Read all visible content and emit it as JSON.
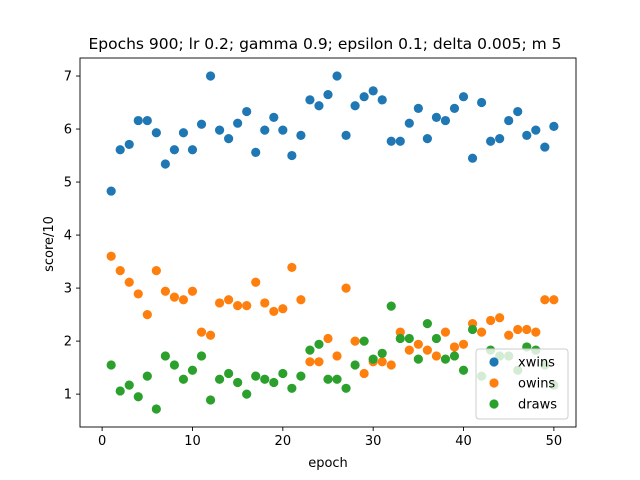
{
  "chart_data": {
    "type": "scatter",
    "title": "Epochs 900; lr 0.2; gamma 0.9; epsilon 0.1; delta 0.005; m 5",
    "xlabel": "epoch",
    "ylabel": "score/10",
    "xlim": [
      -2.45,
      52.45
    ],
    "ylim": [
      0.38,
      7.34
    ],
    "xticks": [
      0,
      10,
      20,
      30,
      40,
      50
    ],
    "yticks": [
      1,
      2,
      3,
      4,
      5,
      6,
      7
    ],
    "grid": false,
    "legend_position": "lower right",
    "x": [
      1,
      2,
      3,
      4,
      5,
      6,
      7,
      8,
      9,
      10,
      11,
      12,
      13,
      14,
      15,
      16,
      17,
      18,
      19,
      20,
      21,
      22,
      23,
      24,
      25,
      26,
      27,
      28,
      29,
      30,
      31,
      32,
      33,
      34,
      35,
      36,
      37,
      38,
      39,
      40,
      41,
      42,
      43,
      44,
      45,
      46,
      47,
      48,
      49,
      50
    ],
    "series": [
      {
        "name": "xwins",
        "color": "#1f77b4",
        "values": [
          4.83,
          5.61,
          5.71,
          6.16,
          6.16,
          5.93,
          5.34,
          5.61,
          5.93,
          5.61,
          6.09,
          7.0,
          5.98,
          5.82,
          6.11,
          6.33,
          5.56,
          5.98,
          6.22,
          5.98,
          5.5,
          5.88,
          6.55,
          6.44,
          6.65,
          7.0,
          5.88,
          6.44,
          6.61,
          6.72,
          6.55,
          5.77,
          5.77,
          6.11,
          6.39,
          5.82,
          6.22,
          6.16,
          6.39,
          6.61,
          5.45,
          6.5,
          5.77,
          5.82,
          6.16,
          6.33,
          5.88,
          5.98,
          5.66,
          6.05
        ]
      },
      {
        "name": "owins",
        "color": "#ff7f0e",
        "values": [
          3.6,
          3.33,
          3.11,
          2.89,
          2.5,
          3.33,
          2.94,
          2.83,
          2.78,
          2.94,
          2.17,
          2.11,
          2.72,
          2.78,
          2.67,
          2.67,
          3.11,
          2.72,
          2.56,
          2.61,
          3.39,
          2.78,
          1.61,
          1.61,
          2.05,
          1.72,
          3.0,
          2.0,
          1.39,
          1.61,
          1.61,
          1.55,
          2.17,
          1.83,
          1.94,
          1.83,
          1.72,
          2.17,
          1.89,
          1.94,
          2.33,
          2.17,
          2.39,
          2.44,
          2.11,
          2.22,
          2.22,
          2.17,
          2.78,
          2.78
        ]
      },
      {
        "name": "draws",
        "color": "#2ca02c",
        "values": [
          1.55,
          1.06,
          1.17,
          0.95,
          1.34,
          0.72,
          1.72,
          1.55,
          1.28,
          1.45,
          1.72,
          0.89,
          1.28,
          1.39,
          1.22,
          1.0,
          1.34,
          1.28,
          1.22,
          1.39,
          1.11,
          1.34,
          1.83,
          1.94,
          1.28,
          1.28,
          1.11,
          1.55,
          2.0,
          1.66,
          1.77,
          2.66,
          2.05,
          2.05,
          1.66,
          2.33,
          2.05,
          1.66,
          1.72,
          1.45,
          2.22,
          1.34,
          1.83,
          1.72,
          1.72,
          1.45,
          1.89,
          1.83,
          1.55,
          1.17
        ]
      }
    ]
  }
}
